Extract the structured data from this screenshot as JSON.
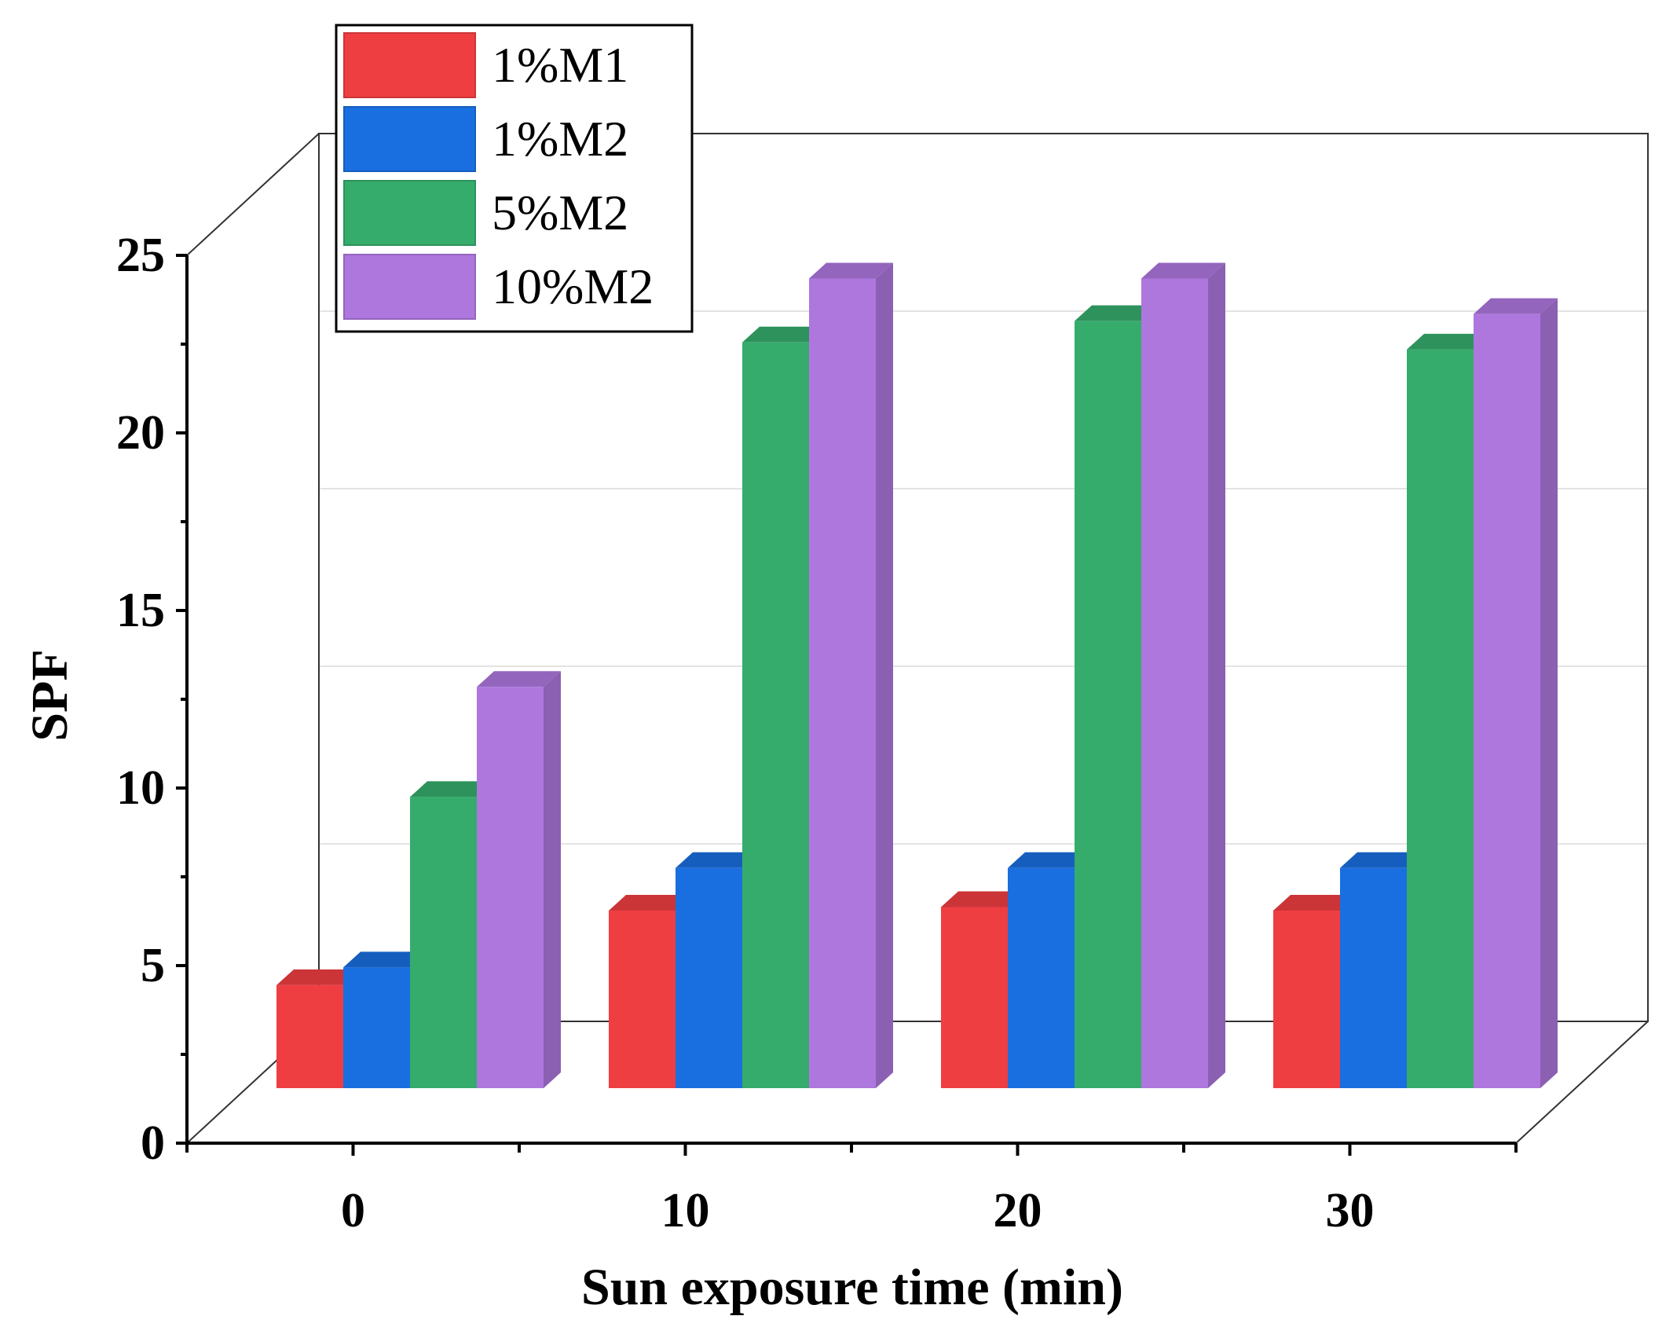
{
  "chart_data": {
    "type": "bar",
    "style": "3d",
    "xlabel": "Sun exposure time (min)",
    "ylabel": "SPF",
    "ylim": [
      0,
      25
    ],
    "yticks": [
      0,
      5,
      10,
      15,
      20,
      25
    ],
    "grid": true,
    "legend_position": "top-left",
    "categories": [
      "0",
      "10",
      "20",
      "30"
    ],
    "series": [
      {
        "name": "1%M1",
        "color": "#ef3e42",
        "values": [
          2.9,
          5.0,
          5.1,
          5.0
        ]
      },
      {
        "name": "1%M2",
        "color": "#1a6fe0",
        "values": [
          3.4,
          6.2,
          6.2,
          6.2
        ]
      },
      {
        "name": "5%M2",
        "color": "#36ac6c",
        "values": [
          8.2,
          21.0,
          21.6,
          20.8
        ]
      },
      {
        "name": "10%M2",
        "color": "#ae77de",
        "values": [
          11.3,
          22.8,
          22.8,
          21.8
        ]
      }
    ]
  }
}
